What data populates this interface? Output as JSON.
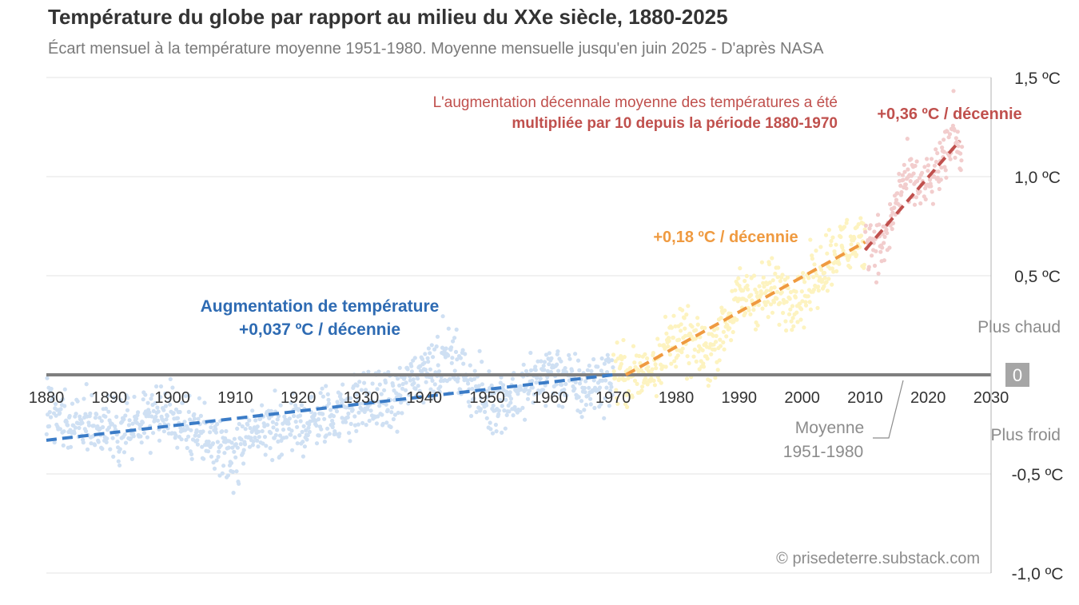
{
  "chart_data": {
    "type": "scatter",
    "title": "Température du globe par rapport au milieu du XXe siècle, 1880-2025",
    "subtitle": "Écart mensuel à la température moyenne 1951-1980. Moyenne mensuelle jusqu'en juin 2025 - D'après NASA",
    "xlim": [
      1880,
      2030
    ],
    "ylim": [
      -1.0,
      1.5
    ],
    "x_ticks": [
      {
        "value": 1880,
        "label": "1880"
      },
      {
        "value": 1890,
        "label": "1890"
      },
      {
        "value": 1900,
        "label": "1900"
      },
      {
        "value": 1910,
        "label": "1910"
      },
      {
        "value": 1920,
        "label": "1920"
      },
      {
        "value": 1930,
        "label": "1930"
      },
      {
        "value": 1940,
        "label": "1940"
      },
      {
        "value": 1950,
        "label": "1950"
      },
      {
        "value": 1960,
        "label": "1960"
      },
      {
        "value": 1970,
        "label": "1970"
      },
      {
        "value": 1980,
        "label": "1980"
      },
      {
        "value": 1990,
        "label": "1990"
      },
      {
        "value": 2000,
        "label": "2000"
      },
      {
        "value": 2010,
        "label": "2010"
      },
      {
        "value": 2020,
        "label": "2020"
      },
      {
        "value": 2030,
        "label": "2030"
      }
    ],
    "y_ticks": [
      {
        "value": 1.5,
        "label": "1,5 ºC"
      },
      {
        "value": 1.0,
        "label": "1,0 ºC"
      },
      {
        "value": 0.5,
        "label": "0,5 ºC"
      },
      {
        "value": -0.5,
        "label": "-0,5 ºC"
      },
      {
        "value": -1.0,
        "label": "-1,0 ºC"
      }
    ],
    "zero_label": "0",
    "warmer_label": "Plus chaud",
    "colder_label": "Plus froid",
    "baseline_label_1": "Moyenne",
    "baseline_label_2": "1951-1980",
    "series": [
      {
        "name": "1880-1970",
        "color": "#cfe0f3",
        "anchors": [
          [
            1880,
            -0.2
          ],
          [
            1890,
            -0.28
          ],
          [
            1900,
            -0.2
          ],
          [
            1905,
            -0.32
          ],
          [
            1910,
            -0.4
          ],
          [
            1915,
            -0.25
          ],
          [
            1920,
            -0.26
          ],
          [
            1925,
            -0.2
          ],
          [
            1930,
            -0.14
          ],
          [
            1935,
            -0.14
          ],
          [
            1940,
            0.04
          ],
          [
            1944,
            0.08
          ],
          [
            1950,
            -0.14
          ],
          [
            1955,
            -0.1
          ],
          [
            1960,
            0.03
          ],
          [
            1965,
            -0.08
          ],
          [
            1970,
            0.0
          ]
        ],
        "noise": 0.13
      },
      {
        "name": "1970-2010",
        "color": "#fdf3c0",
        "anchors": [
          [
            1970,
            0.0
          ],
          [
            1975,
            0.0
          ],
          [
            1980,
            0.2
          ],
          [
            1985,
            0.1
          ],
          [
            1990,
            0.38
          ],
          [
            1995,
            0.42
          ],
          [
            2000,
            0.4
          ],
          [
            2005,
            0.62
          ],
          [
            2010,
            0.68
          ]
        ],
        "noise": 0.13
      },
      {
        "name": "2010-2025",
        "color": "#f2cdcd",
        "anchors": [
          [
            2010,
            0.7
          ],
          [
            2013,
            0.65
          ],
          [
            2016,
            0.98
          ],
          [
            2020,
            0.95
          ],
          [
            2023,
            1.1
          ],
          [
            2024,
            1.25
          ],
          [
            2025.4,
            1.12
          ]
        ],
        "noise": 0.12
      }
    ],
    "trend_lines": [
      {
        "name": "trend-1880-1970",
        "color": "#3b7cc7",
        "x": [
          1880,
          1970
        ],
        "y": [
          -0.33,
          0.0
        ]
      },
      {
        "name": "trend-1970-2010",
        "color": "#ef9a40",
        "x": [
          1972,
          2010
        ],
        "y": [
          0.0,
          0.67
        ]
      },
      {
        "name": "trend-2010-2025",
        "color": "#c0504d",
        "x": [
          2010,
          2025
        ],
        "y": [
          0.63,
          1.18
        ]
      }
    ],
    "annotations": {
      "blue_line1": "Augmentation  de température",
      "blue_line2": "+0,037 ºC / décennie",
      "orange": "+0,18 ºC / décennie",
      "red_rate": "+0,36 ºC / décennie",
      "red_line1": "L'augmentation décennale moyenne des températures a été",
      "red_line2": "multipliée par 10 depuis la période 1880-1970"
    },
    "credit": "© prisedeterre.substack.com"
  }
}
